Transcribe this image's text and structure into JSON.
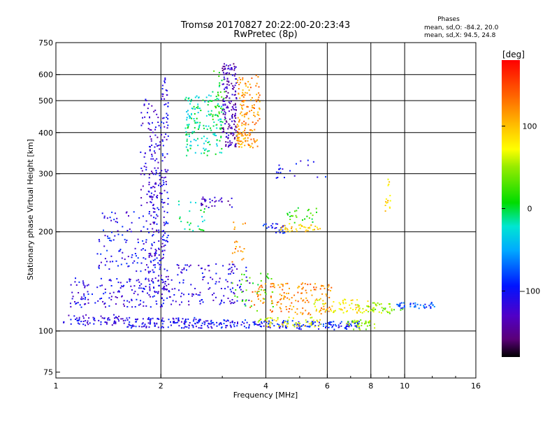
{
  "chart_data": {
    "type": "scatter",
    "title": "Tromsø 20170827 20:22:00-20:23:43",
    "subtitle": "RwPretec (8p)",
    "xlabel": "Frequency [MHz]",
    "ylabel": "Stationary phase Virtual Height [km]",
    "x_scale": "log",
    "y_scale": "log",
    "xlim": [
      1,
      16
    ],
    "ylim": [
      72,
      750
    ],
    "x_ticks": [
      1,
      2,
      4,
      6,
      8,
      10,
      16
    ],
    "x_tick_labels": [
      "1",
      "2",
      "4",
      "6",
      "8",
      "10",
      "16"
    ],
    "x_grid": [
      2,
      4,
      6,
      8,
      10
    ],
    "y_ticks": [
      75,
      100,
      200,
      300,
      400,
      500,
      600,
      750
    ],
    "y_tick_labels": [
      "75",
      "100",
      "200",
      "300",
      "400",
      "500",
      "600",
      "750"
    ],
    "y_grid": [
      100,
      200,
      300,
      400,
      500,
      600
    ],
    "grid": true,
    "colorbar": {
      "unit": "[deg]",
      "range": [
        -180,
        180
      ],
      "ticks": [
        100,
        0,
        -100
      ],
      "tick_labels": [
        "100",
        "0",
        "−100"
      ]
    },
    "phases_box": {
      "title": "Phases",
      "line1": "mean, sd,O: -84.2, 20.0",
      "line2": "mean, sd,X:  94.5, 24.8"
    },
    "clusters": [
      {
        "f": [
          1.05,
          1.6
        ],
        "h": [
          104,
          112
        ],
        "phase": -115,
        "n": 70
      },
      {
        "f": [
          1.6,
          2.6
        ],
        "h": [
          102,
          110
        ],
        "phase": -105,
        "n": 120
      },
      {
        "f": [
          2.6,
          4.8
        ],
        "h": [
          102,
          108
        ],
        "phase": -100,
        "n": 110
      },
      {
        "f": [
          4.8,
          7.5
        ],
        "h": [
          101,
          107
        ],
        "phase": -95,
        "n": 90
      },
      {
        "f": [
          3.8,
          5.8
        ],
        "h": [
          103,
          110
        ],
        "phase": 70,
        "n": 60
      },
      {
        "f": [
          6.8,
          8.2
        ],
        "h": [
          101,
          108
        ],
        "phase": 45,
        "n": 40
      },
      {
        "f": [
          1.1,
          2.2
        ],
        "h": [
          118,
          145
        ],
        "phase": -110,
        "n": 170
      },
      {
        "f": [
          2.2,
          3.6
        ],
        "h": [
          120,
          160
        ],
        "phase": -115,
        "n": 120
      },
      {
        "f": [
          3.2,
          4.2
        ],
        "h": [
          115,
          150
        ],
        "phase": 20,
        "n": 40
      },
      {
        "f": [
          3.6,
          6.2
        ],
        "h": [
          112,
          140
        ],
        "phase": 125,
        "n": 150
      },
      {
        "f": [
          5.5,
          8.0
        ],
        "h": [
          113,
          125
        ],
        "phase": 80,
        "n": 70
      },
      {
        "f": [
          7.8,
          10.0
        ],
        "h": [
          113,
          122
        ],
        "phase": 45,
        "n": 40
      },
      {
        "f": [
          9.5,
          12.3
        ],
        "h": [
          117,
          122
        ],
        "phase": -80,
        "n": 40
      },
      {
        "f": [
          1.3,
          2.1
        ],
        "h": [
          150,
          230
        ],
        "phase": -105,
        "n": 140
      },
      {
        "f": [
          1.85,
          2.1
        ],
        "h": [
          130,
          420
        ],
        "phase": -115,
        "n": 170
      },
      {
        "f": [
          1.75,
          2.0
        ],
        "h": [
          240,
          510
        ],
        "phase": -120,
        "n": 80
      },
      {
        "f": [
          2.0,
          2.1
        ],
        "h": [
          420,
          600
        ],
        "phase": -110,
        "n": 30
      },
      {
        "f": [
          2.25,
          2.7
        ],
        "h": [
          200,
          250
        ],
        "phase": -10,
        "n": 25
      },
      {
        "f": [
          2.6,
          3.2
        ],
        "h": [
          235,
          255
        ],
        "phase": -130,
        "n": 30
      },
      {
        "f": [
          3.2,
          3.5
        ],
        "h": [
          160,
          215
        ],
        "phase": 120,
        "n": 20
      },
      {
        "f": [
          3.9,
          4.6
        ],
        "h": [
          198,
          212
        ],
        "phase": -100,
        "n": 25
      },
      {
        "f": [
          4.4,
          5.8
        ],
        "h": [
          200,
          212
        ],
        "phase": 90,
        "n": 40
      },
      {
        "f": [
          4.6,
          5.6
        ],
        "h": [
          212,
          238
        ],
        "phase": 20,
        "n": 25
      },
      {
        "f": [
          2.35,
          3.0
        ],
        "h": [
          340,
          520
        ],
        "phase": -15,
        "n": 160
      },
      {
        "f": [
          2.8,
          3.05
        ],
        "h": [
          420,
          620
        ],
        "phase": 10,
        "n": 40
      },
      {
        "f": [
          3.0,
          3.3
        ],
        "h": [
          360,
          650
        ],
        "phase": -135,
        "n": 170
      },
      {
        "f": [
          3.3,
          3.85
        ],
        "h": [
          360,
          600
        ],
        "phase": 120,
        "n": 140
      },
      {
        "f": [
          3.3,
          3.6
        ],
        "h": [
          360,
          400
        ],
        "phase": 110,
        "n": 30
      },
      {
        "f": [
          4.0,
          6.0
        ],
        "h": [
          290,
          330
        ],
        "phase": -100,
        "n": 20
      },
      {
        "f": [
          8.8,
          9.2
        ],
        "h": [
          230,
          290
        ],
        "phase": 90,
        "n": 15
      }
    ]
  }
}
